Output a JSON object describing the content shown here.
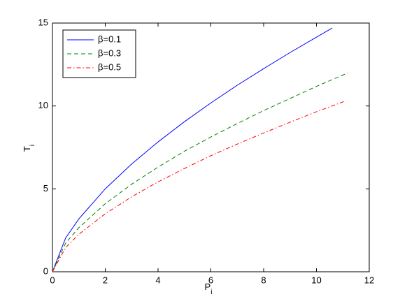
{
  "chart_data": {
    "type": "line",
    "xlabel": {
      "text": "P",
      "sub": "i"
    },
    "ylabel": {
      "text": "T",
      "sub": "i"
    },
    "xlim": [
      0,
      12
    ],
    "xticks": [
      0,
      2,
      4,
      6,
      8,
      10,
      12
    ],
    "ylim": [
      0,
      15
    ],
    "yticks": [
      0,
      5,
      10,
      15
    ],
    "legend": "top-left",
    "series": [
      {
        "name": "β=0.1",
        "color": "#0000ff",
        "style": "solid",
        "x": [
          0,
          0.5,
          1,
          2,
          3,
          4,
          5,
          6,
          7,
          8,
          9,
          10,
          10.6
        ],
        "values": [
          0,
          2.04,
          3.19,
          5,
          6.5,
          7.83,
          9.05,
          10.18,
          11.25,
          12.25,
          13.22,
          14.15,
          14.7
        ]
      },
      {
        "name": "β=0.3",
        "color": "#008000",
        "style": "dashed",
        "x": [
          0,
          0.5,
          1,
          2,
          3,
          4,
          5,
          6,
          7,
          8,
          9,
          10,
          11.2
        ],
        "values": [
          0,
          1.73,
          2.66,
          4.1,
          5.28,
          6.31,
          7.27,
          8.13,
          8.94,
          9.72,
          10.45,
          11.18,
          12.0
        ]
      },
      {
        "name": "β=0.5",
        "color": "#ff0000",
        "style": "dashdot",
        "x": [
          0,
          0.5,
          1,
          2,
          3,
          4,
          5,
          6,
          7,
          8,
          9,
          10,
          11.1
        ],
        "values": [
          0,
          1.46,
          2.26,
          3.5,
          4.52,
          5.42,
          6.23,
          7.0,
          7.7,
          8.37,
          9.02,
          9.65,
          10.3
        ]
      }
    ]
  }
}
